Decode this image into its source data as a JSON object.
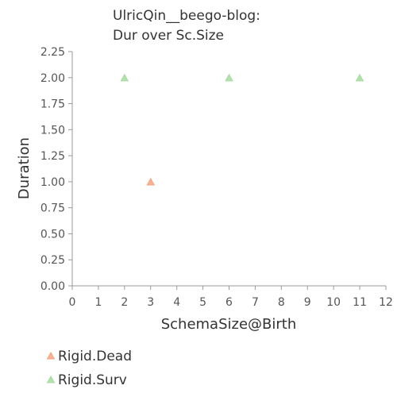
{
  "chart_data": {
    "type": "scatter",
    "title_lines": [
      "UlricQin__beego-blog:",
      "Dur over Sc.Size"
    ],
    "xlabel": "SchemaSize@Birth",
    "ylabel": "Duration",
    "xlim": [
      0,
      12
    ],
    "ylim": [
      0,
      2.25
    ],
    "x_ticks": [
      "0",
      "1",
      "2",
      "3",
      "4",
      "5",
      "6",
      "7",
      "8",
      "9",
      "10",
      "11",
      "12"
    ],
    "y_ticks": [
      "0.00",
      "0.25",
      "0.50",
      "0.75",
      "1.00",
      "1.25",
      "1.50",
      "1.75",
      "2.00",
      "2.25"
    ],
    "grid": false,
    "legend_position": "bottom-left",
    "series": [
      {
        "name": "Rigid.Dead",
        "marker": "triangle",
        "color": "#f4a582",
        "points": [
          {
            "x": 3,
            "y": 1.0
          }
        ]
      },
      {
        "name": "Rigid.Surv",
        "marker": "triangle",
        "color": "#a6dba0",
        "points": [
          {
            "x": 2,
            "y": 2.0
          },
          {
            "x": 6,
            "y": 2.0
          },
          {
            "x": 11,
            "y": 2.0
          }
        ]
      }
    ]
  }
}
